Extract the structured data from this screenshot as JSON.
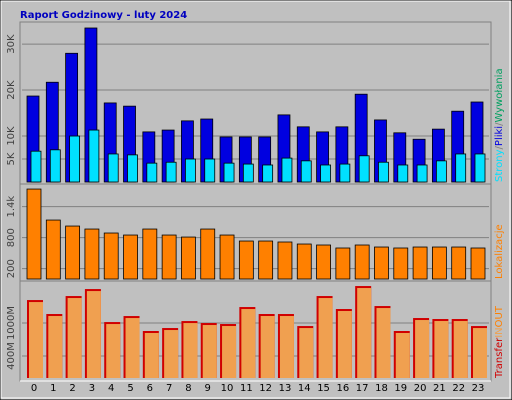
{
  "chart_data": [
    {
      "type": "bar",
      "title": "Raport Godzinowy -  luty 2024",
      "ylim": [
        0,
        33500
      ],
      "yticks": [
        {
          "value": 5000,
          "label": "5K"
        },
        {
          "value": 10000,
          "label": "10K"
        },
        {
          "value": 20000,
          "label": "20K"
        },
        {
          "value": 30000,
          "label": "30K"
        }
      ],
      "series": [
        {
          "name": "Pliki",
          "color": "#0000E0",
          "values": [
            18700,
            21700,
            28000,
            33500,
            17200,
            16500,
            10900,
            11300,
            13300,
            13700,
            9800,
            9800,
            9800,
            14600,
            12000,
            10900,
            12000,
            19100,
            13500,
            10700,
            9300,
            11500,
            15400,
            17400
          ]
        },
        {
          "name": "Strony",
          "color": "#00E0FF",
          "values": [
            6700,
            7000,
            10000,
            11300,
            6100,
            5900,
            4100,
            4300,
            5000,
            5000,
            4100,
            3900,
            3700,
            5200,
            4600,
            3700,
            3900,
            5700,
            4300,
            3700,
            3700,
            4600,
            6100,
            6100
          ]
        }
      ],
      "legend_separator": "/",
      "legend_extra": {
        "text": "Wywołania",
        "color": "#00A060"
      }
    },
    {
      "type": "bar",
      "ylim": [
        0,
        1800
      ],
      "yticks": [
        {
          "value": 1400,
          "label": "1.4k"
        },
        800,
        200
      ],
      "series": [
        {
          "name": "Lokalizacje",
          "color": "#FF8000",
          "values": [
            1741,
            1141,
            1025,
            967,
            890,
            851,
            967,
            851,
            812,
            967,
            851,
            735,
            735,
            716,
            677,
            658,
            600,
            658,
            619,
            600,
            619,
            619,
            619,
            600
          ]
        }
      ]
    },
    {
      "type": "bar",
      "ylim": [
        0,
        1710
      ],
      "yticks": [
        {
          "value": 1000,
          "label": "1000M"
        },
        {
          "value": 400,
          "label": "400M"
        }
      ],
      "series": [
        {
          "name": "Transfer",
          "color": "#F0A050",
          "shadow": "#D00000",
          "values": [
            1418,
            1164,
            1491,
            1618,
            1018,
            1127,
            855,
            909,
            1036,
            1000,
            982,
            1291,
            1164,
            1164,
            945,
            1491,
            1255,
            1673,
            1309,
            855,
            1091,
            1073,
            1073,
            945
          ]
        }
      ],
      "legend_extra": [
        {
          "text": "IN",
          "color": "#F0A050"
        },
        {
          "text": "OUT",
          "color": "#FF8000"
        }
      ],
      "categories": [
        "0",
        "1",
        "2",
        "3",
        "4",
        "5",
        "6",
        "7",
        "8",
        "9",
        "10",
        "11",
        "12",
        "13",
        "14",
        "15",
        "16",
        "17",
        "18",
        "19",
        "20",
        "21",
        "22",
        "23"
      ]
    }
  ]
}
